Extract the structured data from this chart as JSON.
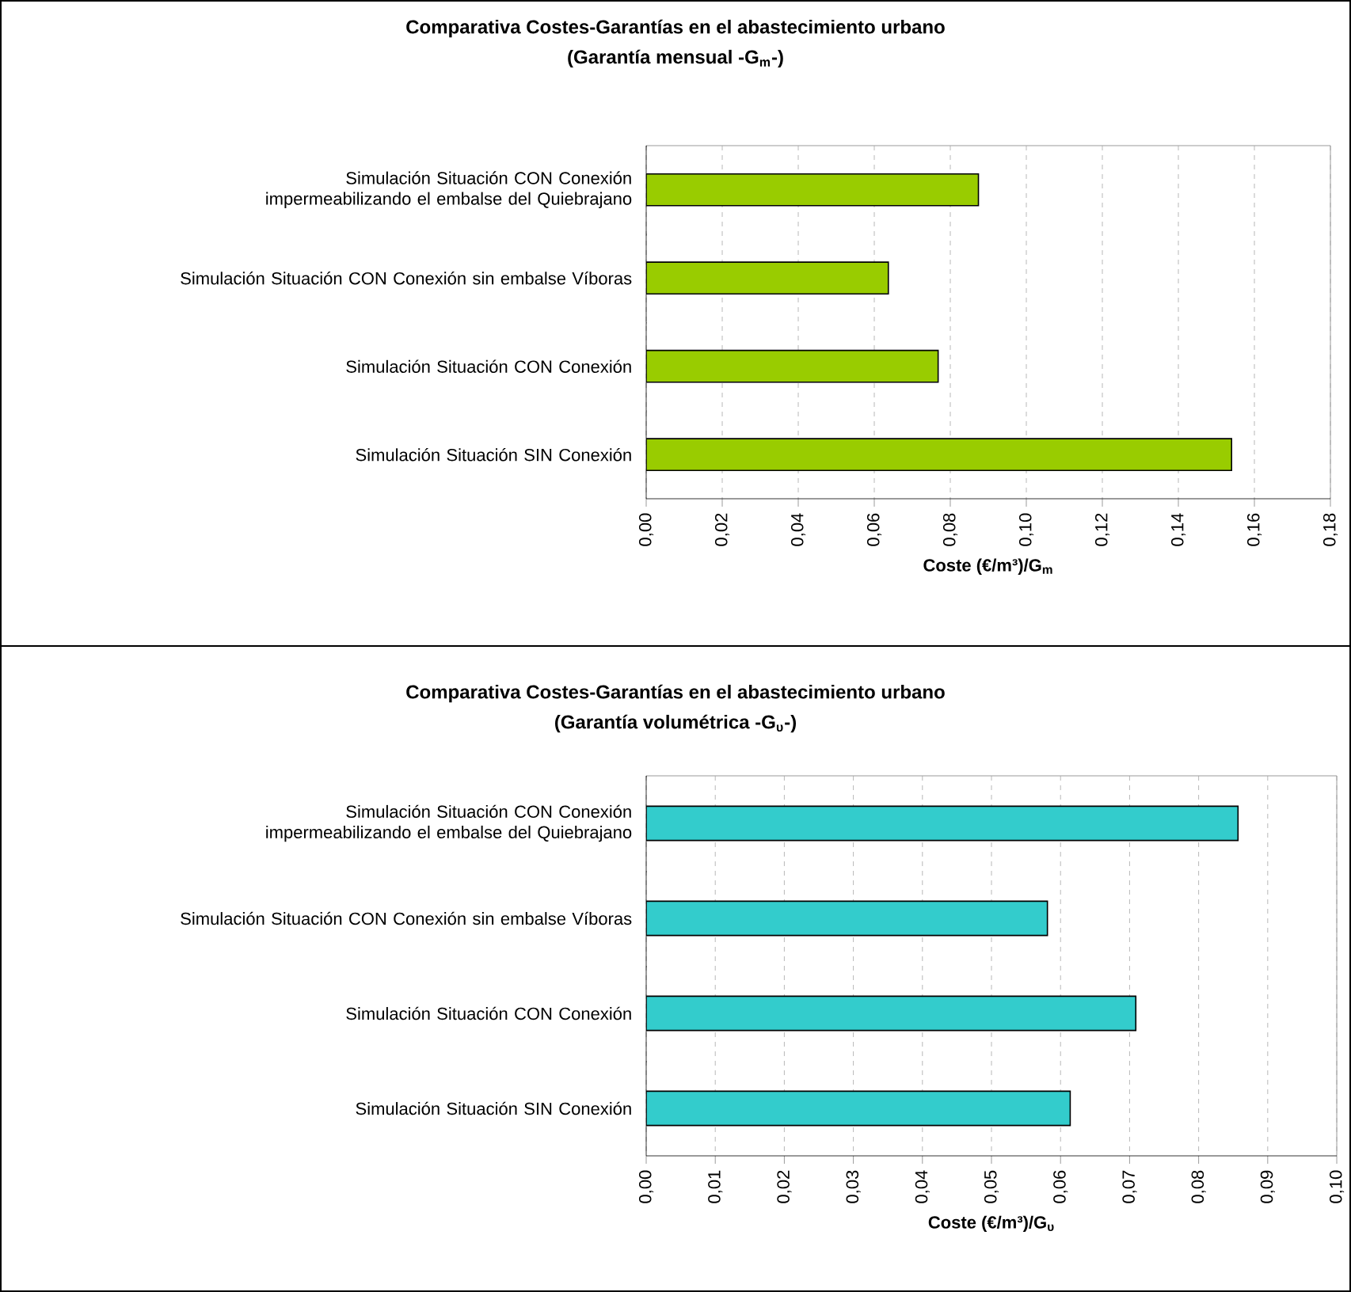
{
  "chart_data": [
    {
      "type": "bar",
      "orientation": "horizontal",
      "title": "Comparativa Costes-Garantías en el abastecimiento urbano",
      "subtitle": "(Garantía mensual -G$_{m}$-)",
      "xlabel": "Coste (€/m³)/G$_{m}$",
      "categories": [
        "Simulación Situación CON Conexión impermeabilizando el embalse del Quiebrajano",
        "Simulación Situación CON Conexión sin embalse Víboras",
        "Simulación Situación CON Conexión",
        "Simulación Situación SIN Conexión"
      ],
      "values": [
        0.0874,
        0.0637,
        0.0768,
        0.154
      ],
      "color": "#99cc00",
      "grid": "x",
      "xlim": [
        0,
        0.18
      ],
      "xticks": [
        {
          "value": 0,
          "label": "0,00"
        },
        {
          "value": 0.02,
          "label": "0,02"
        },
        {
          "value": 0.04,
          "label": "0,04"
        },
        {
          "value": 0.06,
          "label": "0,06"
        },
        {
          "value": 0.08,
          "label": "0,08"
        },
        {
          "value": 0.1,
          "label": "0,10"
        },
        {
          "value": 0.12,
          "label": "0,12"
        },
        {
          "value": 0.14,
          "label": "0,14"
        },
        {
          "value": 0.16,
          "label": "0,16"
        },
        {
          "value": 0.18,
          "label": "0,18"
        }
      ]
    },
    {
      "type": "bar",
      "orientation": "horizontal",
      "title": "Comparativa Costes-Garantías en el abastecimiento urbano",
      "subtitle": "(Garantía volumétrica -G$_{υ}$-)",
      "xlabel": "Coste (€/m³)/G$_{υ}$",
      "categories": [
        "Simulación Situación CON Conexión impermeabilizando el embalse del Quiebrajano",
        "Simulación Situación CON Conexión sin embalse Víboras",
        "Simulación Situación CON Conexión",
        "Simulación Situación SIN Conexión"
      ],
      "values": [
        0.0857,
        0.0581,
        0.0709,
        0.0614
      ],
      "color": "#33cccc",
      "grid": "x",
      "xlim": [
        0,
        0.1
      ],
      "xticks": [
        {
          "value": 0,
          "label": "0,00"
        },
        {
          "value": 0.01,
          "label": "0,01"
        },
        {
          "value": 0.02,
          "label": "0,02"
        },
        {
          "value": 0.03,
          "label": "0,03"
        },
        {
          "value": 0.04,
          "label": "0,04"
        },
        {
          "value": 0.05,
          "label": "0,05"
        },
        {
          "value": 0.06,
          "label": "0,06"
        },
        {
          "value": 0.07,
          "label": "0,07"
        },
        {
          "value": 0.08,
          "label": "0,08"
        },
        {
          "value": 0.09,
          "label": "0,09"
        },
        {
          "value": 0.1,
          "label": "0,10"
        }
      ]
    }
  ]
}
